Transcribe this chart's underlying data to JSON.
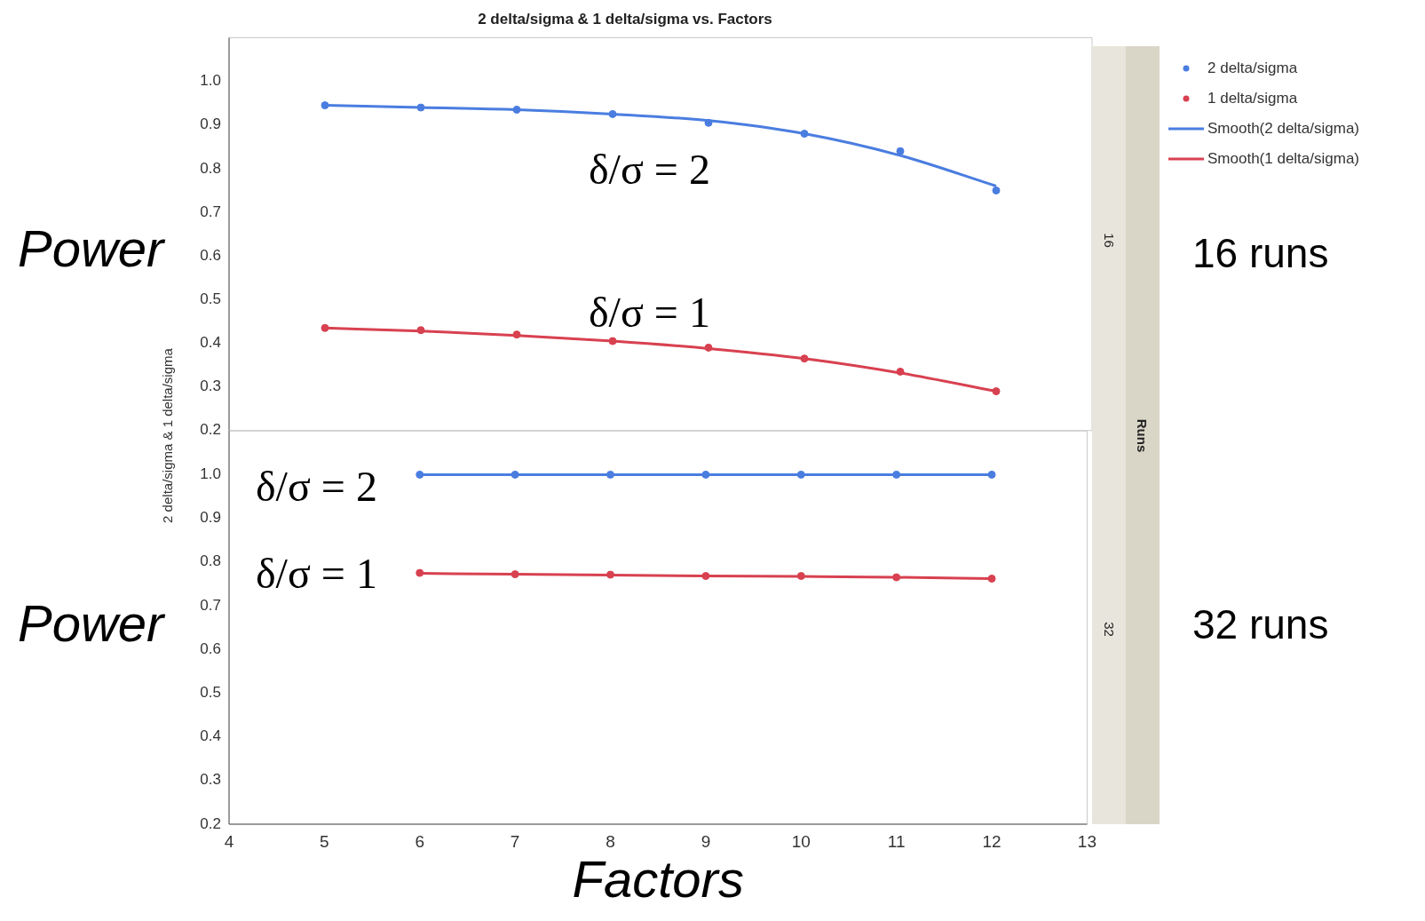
{
  "chart_data": [
    {
      "type": "scatter",
      "title": "2 delta/sigma & 1 delta/sigma vs. Factors",
      "ylabel": "2 delta/sigma & 1 delta/sigma",
      "x": [
        5,
        6,
        7,
        8,
        9,
        10,
        11,
        12
      ],
      "xlim": [
        4,
        13
      ],
      "ylim": [
        0.2,
        1.1
      ],
      "yticks": [
        0.2,
        0.3,
        0.4,
        0.5,
        0.6,
        0.7,
        0.8,
        0.9,
        {
          "value": 1,
          "label": "1.0"
        }
      ],
      "tick_labels": "y",
      "grid": false,
      "legend": "top right",
      "series": [
        {
          "name": "2 delta/sigma",
          "type": "scatter",
          "marker": "circle",
          "color": "#4a7de0",
          "values": [
            0.945,
            0.94,
            0.935,
            0.925,
            0.905,
            0.88,
            0.84,
            0.75
          ]
        },
        {
          "name": "1 delta/sigma",
          "type": "scatter",
          "marker": "circle",
          "color": "#d84150",
          "values": [
            0.435,
            0.43,
            0.42,
            0.405,
            0.39,
            0.365,
            0.335,
            0.29
          ]
        },
        {
          "name": "Smooth(2 delta/sigma)",
          "type": "line",
          "marker": "none",
          "line_style": "solid",
          "color": "#4a7de0",
          "values": [
            0.945,
            0.94,
            0.935,
            0.925,
            0.91,
            0.88,
            0.83,
            0.76
          ]
        },
        {
          "name": "Smooth(1 delta/sigma)",
          "type": "line",
          "marker": "none",
          "line_style": "solid",
          "color": "#d84150",
          "values": [
            0.435,
            0.428,
            0.418,
            0.405,
            0.388,
            0.365,
            0.332,
            0.29
          ]
        }
      ],
      "annotations": [
        "δ/σ = 2",
        "δ/σ = 1",
        "Power",
        "16 runs",
        "16",
        "Runs"
      ]
    },
    {
      "type": "scatter",
      "xlabel": "Factors",
      "x": [
        6,
        7,
        8,
        9,
        10,
        11,
        12
      ],
      "xlim": [
        4,
        13
      ],
      "xticks": [
        4,
        5,
        6,
        7,
        8,
        9,
        10,
        11,
        12,
        13
      ],
      "ylim": [
        0.2,
        1.1
      ],
      "yticks": [
        0.2,
        0.3,
        0.4,
        0.5,
        0.6,
        0.7,
        0.8,
        0.9,
        {
          "value": 1,
          "label": "1.0"
        }
      ],
      "grid": false,
      "series": [
        {
          "type": "scatter",
          "marker": "circle",
          "color": "#4a7de0",
          "values": [
            1,
            1,
            1,
            1,
            1,
            1,
            1
          ]
        },
        {
          "type": "scatter",
          "marker": "circle",
          "color": "#d84150",
          "values": [
            0.775,
            0.772,
            0.771,
            0.768,
            0.768,
            0.765,
            0.762
          ]
        },
        {
          "type": "line",
          "marker": "none",
          "line_style": "solid",
          "color": "#4a7de0",
          "values": [
            1,
            1,
            1,
            1,
            1,
            1,
            1
          ]
        },
        {
          "type": "line",
          "marker": "none",
          "line_style": "solid",
          "color": "#d84150",
          "values": [
            0.774,
            0.772,
            0.77,
            0.768,
            0.767,
            0.765,
            0.762
          ]
        }
      ],
      "annotations": [
        "δ/σ = 2",
        "δ/σ = 1",
        "Power",
        "32 runs",
        "32"
      ]
    }
  ]
}
